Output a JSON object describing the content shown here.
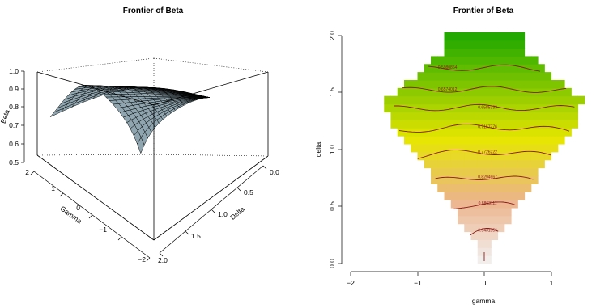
{
  "chart_data": [
    {
      "type": "surface",
      "title": "Frontier of Beta",
      "xlabel": "Gamma",
      "ylabel": "Delta",
      "zlabel": "Beta",
      "x_ticks": [
        "2",
        "1",
        "0",
        "−1",
        "−2"
      ],
      "y_ticks": [
        "0.0",
        "0.5",
        "1.0",
        "1.5",
        "2.0"
      ],
      "z_ticks": [
        "0.5",
        "0.6",
        "0.7",
        "0.8",
        "0.9",
        "1.0"
      ],
      "xlim": [
        -2,
        2
      ],
      "ylim": [
        0,
        2
      ],
      "zlim": [
        0.5,
        1.0
      ],
      "surface_color": "#8fa6b0",
      "edge_color": "#000000"
    },
    {
      "type": "heatmap",
      "title": "Frontier of Beta",
      "xlabel": "gamma",
      "ylabel": "delta",
      "x_ticks": [
        "−2",
        "−1",
        "0",
        "1"
      ],
      "y_ticks": [
        "0.0",
        "0.5",
        "1.0",
        "1.5",
        "2.0"
      ],
      "xlim": [
        -2,
        2
      ],
      "ylim": [
        0,
        2
      ],
      "contour_levels": [
        {
          "label": "0.5980864",
          "value": 0.5980864,
          "delta": 1.72
        },
        {
          "label": "0.6574012",
          "value": 0.6574012,
          "delta": 1.53
        },
        {
          "label": "0.6585333",
          "value": 0.6585333,
          "delta": 1.37
        },
        {
          "label": "0.7157776",
          "value": 0.7157776,
          "delta": 1.2
        },
        {
          "label": "0.7726222",
          "value": 0.7726222,
          "delta": 0.98
        },
        {
          "label": "0.8294667",
          "value": 0.8294667,
          "delta": 0.76
        },
        {
          "label": "0.8863111",
          "value": 0.8863111,
          "delta": 0.53
        },
        {
          "label": "0.9431556",
          "value": 0.9431556,
          "delta": 0.29
        }
      ],
      "colors": {
        "low": "#21a800",
        "mid": "#e6e600",
        "high": "#f2f2f2",
        "contour": "#8b1a1a"
      }
    }
  ]
}
